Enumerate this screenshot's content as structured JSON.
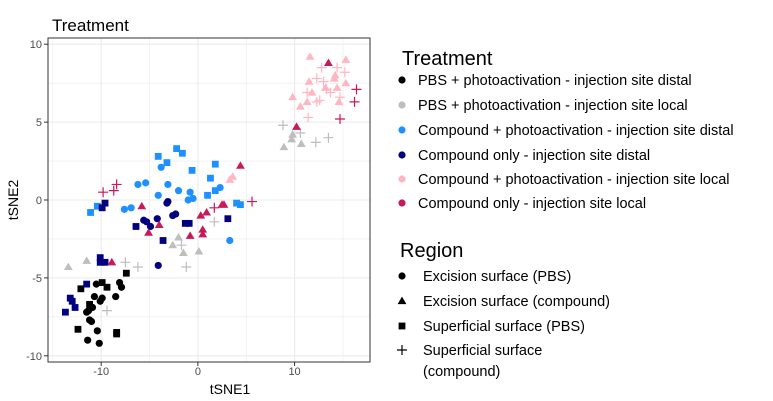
{
  "chart_data": {
    "type": "scatter",
    "title": "Treatment",
    "xlabel": "tSNE1",
    "ylabel": "tSNE2",
    "xlim": [
      -15.5,
      17.8
    ],
    "ylim": [
      -10.4,
      10.4
    ],
    "xticks": [
      -10,
      0,
      10
    ],
    "yticks": [
      -10,
      -5,
      0,
      5,
      10
    ],
    "grid": true,
    "legend_placement": "right",
    "color_legend": {
      "title": "Treatment",
      "entries": [
        {
          "label": "PBS + photoactivation - injection site distal",
          "color": "#000000"
        },
        {
          "label": "PBS + photoactivation - injection site local",
          "color": "#bebebe"
        },
        {
          "label": "Compound + photoactivation - injection site distal",
          "color": "#1e90ff"
        },
        {
          "label": "Compound only - injection site distal",
          "color": "#000080"
        },
        {
          "label": "Compound + photoactivation - injection site local",
          "color": "#ffb6c1"
        },
        {
          "label": "Compound only - injection site local",
          "color": "#c8195a"
        }
      ]
    },
    "shape_legend": {
      "title": "Region",
      "entries": [
        {
          "label": "Excision surface (PBS)",
          "shape": "circle"
        },
        {
          "label": "Excision surface (compound)",
          "shape": "triangle"
        },
        {
          "label": "Superficial surface (PBS)",
          "shape": "square"
        },
        {
          "label": "Superficial surface (compound)",
          "shape": "plus"
        }
      ]
    },
    "series": [
      {
        "name": "PBS + photoactivation - injection site distal",
        "points": {
          "square": [
            [
              -7.4,
              -4.7
            ],
            [
              -9.9,
              -5.3
            ],
            [
              -12.1,
              -5.7
            ],
            [
              -9.4,
              -5.6
            ],
            [
              -11.2,
              -6.7
            ],
            [
              -12.4,
              -8.3
            ],
            [
              -8.4,
              -8.5
            ],
            [
              -8.4,
              -8.6
            ]
          ],
          "circle": [
            [
              -10.5,
              -5.4
            ],
            [
              -8.1,
              -5.3
            ],
            [
              -7.9,
              -5.6
            ],
            [
              -10.7,
              -6.2
            ],
            [
              -9.9,
              -6.3
            ],
            [
              -10.1,
              -6.5
            ],
            [
              -8.5,
              -6.2
            ],
            [
              -10.9,
              -6.9
            ],
            [
              -11.5,
              -7.2
            ],
            [
              -11.3,
              -7.1
            ],
            [
              -11.2,
              -7.7
            ],
            [
              -11.0,
              -7.8
            ],
            [
              -10.4,
              -8.4
            ],
            [
              -11.4,
              -9.0
            ],
            [
              -10.2,
              -9.2
            ]
          ]
        }
      },
      {
        "name": "PBS + photoactivation - injection site local",
        "points": {
          "triangle": [
            [
              -2.0,
              -2.4
            ],
            [
              -2.6,
              -2.9
            ],
            [
              -1.5,
              -3.4
            ],
            [
              0.1,
              -3.3
            ],
            [
              -11.5,
              -3.9
            ],
            [
              -13.4,
              -4.3
            ],
            [
              9.8,
              4.2
            ],
            [
              9.7,
              3.9
            ],
            [
              10.7,
              3.6
            ],
            [
              8.9,
              3.4
            ]
          ],
          "plus": [
            [
              -1.7,
              -2.9
            ],
            [
              1.7,
              -1.4
            ],
            [
              -7.5,
              -4.0
            ],
            [
              -6.2,
              -4.3
            ],
            [
              -1.2,
              -4.3
            ],
            [
              -9.4,
              -7.1
            ],
            [
              8.8,
              4.8
            ],
            [
              10.6,
              4.3
            ],
            [
              12.2,
              3.7
            ],
            [
              13.5,
              4.0
            ]
          ]
        }
      },
      {
        "name": "Compound + photoactivation - injection site distal",
        "points": {
          "square": [
            [
              -4.1,
              2.8
            ],
            [
              -3.2,
              2.4
            ],
            [
              -2.2,
              3.3
            ],
            [
              -1.6,
              3.0
            ],
            [
              -0.6,
              1.9
            ],
            [
              1.8,
              2.3
            ],
            [
              1.3,
              1.4
            ],
            [
              1.8,
              0.6
            ],
            [
              1.0,
              0.3
            ],
            [
              -11.1,
              -0.8
            ],
            [
              -10.4,
              -0.4
            ],
            [
              4.0,
              -0.2
            ],
            [
              4.4,
              -0.3
            ]
          ],
          "circle": [
            [
              -3.8,
              2.1
            ],
            [
              -6.2,
              1.0
            ],
            [
              -5.4,
              1.1
            ],
            [
              -3.1,
              1.0
            ],
            [
              -4.1,
              0.3
            ],
            [
              -2.0,
              0.6
            ],
            [
              -0.8,
              0.5
            ],
            [
              -1.0,
              0
            ],
            [
              -0.5,
              0.1
            ],
            [
              -7.6,
              -0.6
            ],
            [
              -6.9,
              -0.5
            ],
            [
              2.3,
              0.8
            ],
            [
              3.3,
              -2.6
            ]
          ]
        }
      },
      {
        "name": "Compound only - injection site distal",
        "points": {
          "square": [
            [
              -9.9,
              -0.5
            ],
            [
              -9.6,
              -0.2
            ],
            [
              -6.4,
              -1.7
            ],
            [
              -3.6,
              -2.6
            ],
            [
              -1.3,
              -1.5
            ],
            [
              -0.9,
              -1.5
            ],
            [
              3.1,
              -1.2
            ],
            [
              -10.1,
              -3.7
            ],
            [
              -10.1,
              -4.0
            ],
            [
              -9.6,
              -4.0
            ],
            [
              -11.5,
              -5.4
            ],
            [
              -13.2,
              -6.3
            ],
            [
              -13.0,
              -6.5
            ],
            [
              -12.7,
              -6.9
            ],
            [
              -13.7,
              -7.2
            ]
          ],
          "circle": [
            [
              -3.2,
              -0.2
            ],
            [
              -3.1,
              -0.1
            ],
            [
              -5.6,
              -1.3
            ],
            [
              -5.3,
              -1.4
            ],
            [
              -4.9,
              -1.7
            ],
            [
              -4.2,
              -1.2
            ],
            [
              -2.6,
              -1.0
            ],
            [
              -2.3,
              -0.9
            ],
            [
              -4.1,
              -4.2
            ]
          ]
        }
      },
      {
        "name": "Compound + photoactivation - injection site local",
        "points": {
          "triangle": [
            [
              3.3,
              1.3
            ],
            [
              3.6,
              1.5
            ],
            [
              11.6,
              9.2
            ],
            [
              15.3,
              9.0
            ],
            [
              14.2,
              8.0
            ],
            [
              14.1,
              7.8
            ],
            [
              11.5,
              7.6
            ],
            [
              15.3,
              7.5
            ],
            [
              13.2,
              7.2
            ],
            [
              14.4,
              7.2
            ],
            [
              11.8,
              6.9
            ],
            [
              9.8,
              6.6
            ],
            [
              11.3,
              6.3
            ],
            [
              10.6,
              6.0
            ],
            [
              14.6,
              6.3
            ]
          ],
          "plus": [
            [
              12.8,
              8.5
            ],
            [
              14.4,
              8.5
            ],
            [
              15.2,
              8.2
            ],
            [
              12.3,
              7.8
            ],
            [
              13.0,
              7.6
            ],
            [
              11.3,
              6.9
            ],
            [
              13.7,
              6.9
            ],
            [
              12.6,
              6.4
            ],
            [
              12.3,
              6.3
            ],
            [
              11.4,
              5.3
            ],
            [
              14.7,
              6.6
            ],
            [
              13.3,
              7.1
            ]
          ]
        }
      },
      {
        "name": "Compound only - injection site local",
        "points": {
          "triangle": [
            [
              -5.8,
              -0.4
            ],
            [
              -4.0,
              -1.6
            ],
            [
              -5.1,
              -2.1
            ],
            [
              -0.8,
              -2.3
            ],
            [
              0.3,
              -1.0
            ],
            [
              0.9,
              -0.8
            ],
            [
              0.5,
              -1.9
            ],
            [
              0.5,
              -2.2
            ],
            [
              2.5,
              -0.3
            ],
            [
              2.7,
              -0.3
            ],
            [
              4.4,
              2.2
            ],
            [
              -8.9,
              -4.0
            ],
            [
              13.5,
              8.8
            ],
            [
              10.2,
              4.7
            ]
          ],
          "plus": [
            [
              -9.8,
              0.5
            ],
            [
              -8.7,
              0.6
            ],
            [
              -8.4,
              1.0
            ],
            [
              1.7,
              -0.5
            ],
            [
              5.6,
              -0.1
            ],
            [
              16.4,
              7.1
            ],
            [
              16.2,
              6.3
            ],
            [
              14.7,
              5.2
            ]
          ]
        }
      }
    ]
  }
}
